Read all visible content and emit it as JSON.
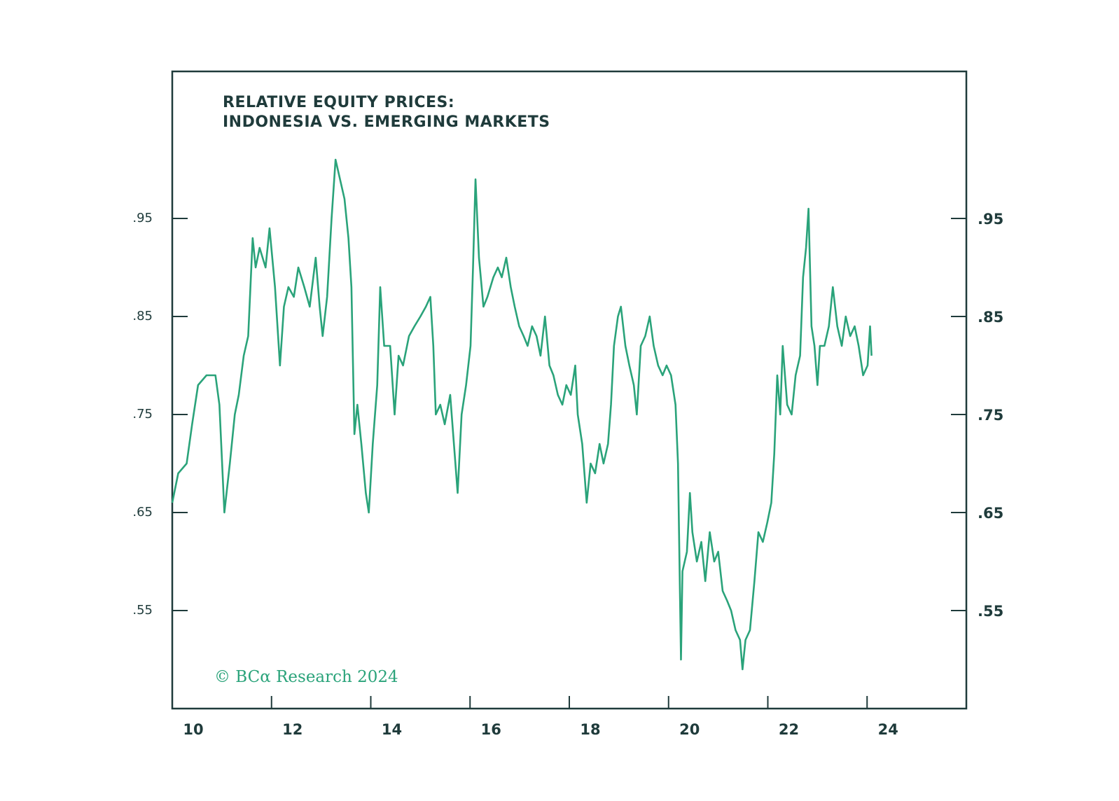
{
  "chart_data": {
    "type": "line",
    "title_lines": [
      "RELATIVE EQUITY PRICES:",
      "INDONESIA VS. EMERGING MARKETS"
    ],
    "annotation": "© BCα Research 2024",
    "x": [
      2010.0,
      2010.12,
      2010.29,
      2010.4,
      2010.52,
      2010.69,
      2010.87,
      2010.95,
      2011.05,
      2011.16,
      2011.26,
      2011.34,
      2011.44,
      2011.53,
      2011.62,
      2011.68,
      2011.76,
      2011.88,
      2011.96,
      2012.07,
      2012.17,
      2012.25,
      2012.34,
      2012.45,
      2012.54,
      2012.66,
      2012.77,
      2012.89,
      2012.97,
      2013.03,
      2013.12,
      2013.21,
      2013.29,
      2013.38,
      2013.47,
      2013.55,
      2013.61,
      2013.67,
      2013.73,
      2013.81,
      2013.9,
      2013.96,
      2014.04,
      2014.13,
      2014.19,
      2014.27,
      2014.39,
      2014.48,
      2014.56,
      2014.65,
      2014.77,
      2014.88,
      2015.0,
      2015.11,
      2015.2,
      2015.26,
      2015.31,
      2015.4,
      2015.49,
      2015.6,
      2015.69,
      2015.75,
      2015.83,
      2015.92,
      2016.01,
      2016.06,
      2016.11,
      2016.18,
      2016.27,
      2016.35,
      2016.47,
      2016.56,
      2016.64,
      2016.73,
      2016.82,
      2016.9,
      2016.99,
      2017.08,
      2017.16,
      2017.25,
      2017.34,
      2017.42,
      2017.51,
      2017.6,
      2017.68,
      2017.77,
      2017.86,
      2017.94,
      2018.03,
      2018.12,
      2018.17,
      2018.26,
      2018.35,
      2018.43,
      2018.52,
      2018.61,
      2018.69,
      2018.78,
      2018.84,
      2018.9,
      2018.98,
      2019.04,
      2019.13,
      2019.21,
      2019.3,
      2019.36,
      2019.44,
      2019.53,
      2019.62,
      2019.7,
      2019.79,
      2019.88,
      2019.96,
      2020.05,
      2020.14,
      2020.19,
      2020.22,
      2020.25,
      2020.28,
      2020.37,
      2020.43,
      2020.48,
      2020.57,
      2020.66,
      2020.74,
      2020.83,
      2020.92,
      2021.0,
      2021.09,
      2021.18,
      2021.26,
      2021.35,
      2021.44,
      2021.49,
      2021.55,
      2021.64,
      2021.73,
      2021.81,
      2021.9,
      2021.99,
      2022.07,
      2022.13,
      2022.19,
      2022.25,
      2022.3,
      2022.39,
      2022.48,
      2022.56,
      2022.65,
      2022.71,
      2022.77,
      2022.82,
      2022.88,
      2022.94,
      2023.0,
      2023.05,
      2023.14,
      2023.23,
      2023.31,
      2023.4,
      2023.49,
      2023.57,
      2023.66,
      2023.75,
      2023.83,
      2023.92,
      2024.01,
      2024.06,
      2024.09
    ],
    "series": [
      {
        "color": "#2aa37a",
        "values": [
          0.66,
          0.69,
          0.7,
          0.74,
          0.78,
          0.79,
          0.79,
          0.76,
          0.65,
          0.7,
          0.75,
          0.77,
          0.81,
          0.83,
          0.93,
          0.9,
          0.92,
          0.9,
          0.94,
          0.88,
          0.8,
          0.86,
          0.88,
          0.87,
          0.9,
          0.88,
          0.86,
          0.91,
          0.86,
          0.83,
          0.87,
          0.95,
          1.01,
          0.99,
          0.97,
          0.93,
          0.88,
          0.73,
          0.76,
          0.72,
          0.67,
          0.65,
          0.72,
          0.78,
          0.88,
          0.82,
          0.82,
          0.75,
          0.81,
          0.8,
          0.83,
          0.84,
          0.85,
          0.86,
          0.87,
          0.82,
          0.75,
          0.76,
          0.74,
          0.77,
          0.71,
          0.67,
          0.75,
          0.78,
          0.82,
          0.9,
          0.99,
          0.91,
          0.86,
          0.87,
          0.89,
          0.9,
          0.89,
          0.91,
          0.88,
          0.86,
          0.84,
          0.83,
          0.82,
          0.84,
          0.83,
          0.81,
          0.85,
          0.8,
          0.79,
          0.77,
          0.76,
          0.78,
          0.77,
          0.8,
          0.75,
          0.72,
          0.66,
          0.7,
          0.69,
          0.72,
          0.7,
          0.72,
          0.76,
          0.82,
          0.85,
          0.86,
          0.82,
          0.8,
          0.78,
          0.75,
          0.82,
          0.83,
          0.85,
          0.82,
          0.8,
          0.79,
          0.8,
          0.79,
          0.76,
          0.7,
          0.6,
          0.5,
          0.59,
          0.61,
          0.67,
          0.63,
          0.6,
          0.62,
          0.58,
          0.63,
          0.6,
          0.61,
          0.57,
          0.56,
          0.55,
          0.53,
          0.52,
          0.49,
          0.52,
          0.53,
          0.58,
          0.63,
          0.62,
          0.64,
          0.66,
          0.71,
          0.79,
          0.75,
          0.82,
          0.76,
          0.75,
          0.79,
          0.81,
          0.89,
          0.92,
          0.96,
          0.84,
          0.82,
          0.78,
          0.82,
          0.82,
          0.84,
          0.88,
          0.84,
          0.82,
          0.85,
          0.83,
          0.84,
          0.82,
          0.79,
          0.8,
          0.84,
          0.81
        ]
      }
    ],
    "xlim": [
      2010,
      2026
    ],
    "xticks": [
      {
        "value": 2010,
        "label": "10"
      },
      {
        "value": 2012,
        "label": "12"
      },
      {
        "value": 2014,
        "label": "14"
      },
      {
        "value": 2016,
        "label": "16"
      },
      {
        "value": 2018,
        "label": "18"
      },
      {
        "value": 2020,
        "label": "20"
      },
      {
        "value": 2022,
        "label": "22"
      },
      {
        "value": 2024,
        "label": "24"
      }
    ],
    "ylim": [
      0.45,
      1.1
    ],
    "yticks": [
      {
        "value": 0.55,
        "label": ".55"
      },
      {
        "value": 0.65,
        "label": ".65"
      },
      {
        "value": 0.75,
        "label": ".75"
      },
      {
        "value": 0.85,
        "label": ".85"
      },
      {
        "value": 0.95,
        "label": ".95"
      }
    ],
    "y2lim": [
      0.45,
      1.1
    ],
    "y2ticks": [
      {
        "value": 0.55,
        "label": ".55"
      },
      {
        "value": 0.65,
        "label": ".65"
      },
      {
        "value": 0.75,
        "label": ".75"
      },
      {
        "value": 0.85,
        "label": ".85"
      },
      {
        "value": 0.95,
        "label": ".95"
      }
    ],
    "grid": false
  }
}
